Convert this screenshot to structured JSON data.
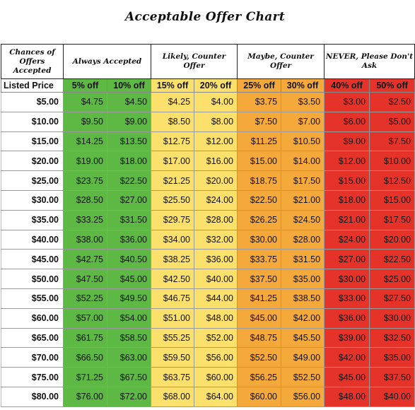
{
  "title": "Acceptable Offer Chart",
  "header": {
    "chances": "Chances of Offers Accepted",
    "groups": [
      {
        "label": "Always Accepted",
        "color": "#5db844"
      },
      {
        "label": "Likely, Counter Offer",
        "color": "#fbe06b"
      },
      {
        "label": "Maybe, Counter Offer",
        "color": "#f6a93b"
      },
      {
        "label": "NEVER, Please Don't Ask",
        "color": "#e6332a"
      }
    ],
    "listed_price": "Listed Price",
    "discounts": [
      "5% off",
      "10% off",
      "15% off",
      "20% off",
      "25% off",
      "30% off",
      "40% off",
      "50% off"
    ]
  },
  "rows": [
    {
      "price": "$5.00",
      "values": [
        "$4.75",
        "$4.50",
        "$4.25",
        "$4.00",
        "$3.75",
        "$3.50",
        "$3.00",
        "$2.50"
      ]
    },
    {
      "price": "$10.00",
      "values": [
        "$9.50",
        "$9.00",
        "$8.50",
        "$8.00",
        "$7.50",
        "$7.00",
        "$6.00",
        "$5.00"
      ]
    },
    {
      "price": "$15.00",
      "values": [
        "$14.25",
        "$13.50",
        "$12.75",
        "$12.00",
        "$11.25",
        "$10.50",
        "$9.00",
        "$7.50"
      ]
    },
    {
      "price": "$20.00",
      "values": [
        "$19.00",
        "$18.00",
        "$17.00",
        "$16.00",
        "$15.00",
        "$14.00",
        "$12.00",
        "$10.00"
      ]
    },
    {
      "price": "$25.00",
      "values": [
        "$23.75",
        "$22.50",
        "$21.25",
        "$20.00",
        "$18.75",
        "$17.50",
        "$15.00",
        "$12.50"
      ]
    },
    {
      "price": "$30.00",
      "values": [
        "$28.50",
        "$27.00",
        "$25.50",
        "$24.00",
        "$22.50",
        "$21.00",
        "$18.00",
        "$15.00"
      ]
    },
    {
      "price": "$35.00",
      "values": [
        "$33.25",
        "$31.50",
        "$29.75",
        "$28.00",
        "$26.25",
        "$24.50",
        "$21.00",
        "$17.50"
      ]
    },
    {
      "price": "$40.00",
      "values": [
        "$38.00",
        "$36.00",
        "$34.00",
        "$32.00",
        "$30.00",
        "$28.00",
        "$24.00",
        "$20.00"
      ]
    },
    {
      "price": "$45.00",
      "values": [
        "$42.75",
        "$40.50",
        "$38.25",
        "$36.00",
        "$33.75",
        "$31.50",
        "$27.00",
        "$22.50"
      ]
    },
    {
      "price": "$50.00",
      "values": [
        "$47.50",
        "$45.00",
        "$42.50",
        "$40.00",
        "$37.50",
        "$35.00",
        "$30.00",
        "$25.00"
      ]
    },
    {
      "price": "$55.00",
      "values": [
        "$52.25",
        "$49.50",
        "$46.75",
        "$44.00",
        "$41.25",
        "$38.50",
        "$33.00",
        "$27.50"
      ]
    },
    {
      "price": "$60.00",
      "values": [
        "$57.00",
        "$54.00",
        "$51.00",
        "$48.00",
        "$45.00",
        "$42.00",
        "$36.00",
        "$30.00"
      ]
    },
    {
      "price": "$65.00",
      "values": [
        "$61.75",
        "$58.50",
        "$55.25",
        "$52.00",
        "$48.75",
        "$45.50",
        "$39.00",
        "$32.50"
      ]
    },
    {
      "price": "$70.00",
      "values": [
        "$66.50",
        "$63.00",
        "$59.50",
        "$56.00",
        "$52.50",
        "$49.00",
        "$42.00",
        "$35.00"
      ]
    },
    {
      "price": "$75.00",
      "values": [
        "$71.25",
        "$67.50",
        "$63.75",
        "$60.00",
        "$56.25",
        "$52.50",
        "$45.00",
        "$37.50"
      ]
    },
    {
      "price": "$80.00",
      "values": [
        "$76.00",
        "$72.00",
        "$68.00",
        "$64.00",
        "$60.00",
        "$56.00",
        "$48.00",
        "$40.00"
      ]
    }
  ]
}
